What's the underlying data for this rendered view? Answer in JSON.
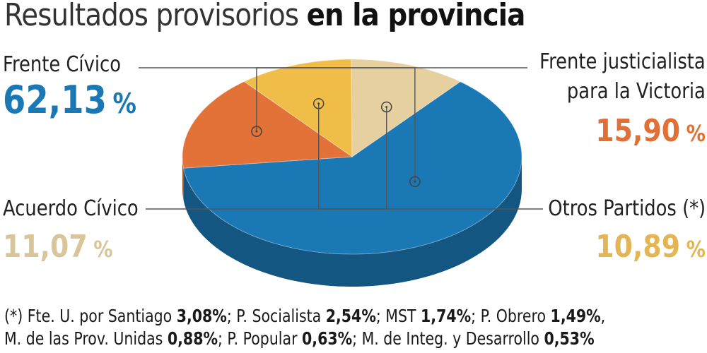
{
  "title": {
    "light": "Resultados provisorios",
    "bold": "en la provincia"
  },
  "chart_data": {
    "type": "pie",
    "title": "Resultados provisorios en la provincia",
    "slices": [
      {
        "name": "Frente Cívico",
        "value": 62.13,
        "label": "62,13",
        "color": "#1a78b4"
      },
      {
        "name": "Frente justicialista para la Victoria",
        "name_line1": "Frente justicialista",
        "name_line2": "para la Victoria",
        "value": 15.9,
        "label": "15,90",
        "color": "#e27238"
      },
      {
        "name": "Otros Partidos (*)",
        "value": 10.89,
        "label": "10,89",
        "color": "#f0be48"
      },
      {
        "name": "Acuerdo Cívico",
        "value": 11.07,
        "label": "11,07",
        "color": "#e6d0a0"
      }
    ],
    "unit": "%"
  },
  "footnote": {
    "line1": [
      {
        "t": "(*) Fte. U. por Santiago ",
        "b": false
      },
      {
        "t": "3,08%",
        "b": true
      },
      {
        "t": "; P. Socialista ",
        "b": false
      },
      {
        "t": "2,54%",
        "b": true
      },
      {
        "t": "; MST ",
        "b": false
      },
      {
        "t": "1,74%",
        "b": true
      },
      {
        "t": "; P. Obrero ",
        "b": false
      },
      {
        "t": "1,49%",
        "b": true
      },
      {
        "t": ",",
        "b": false
      }
    ],
    "line2": [
      {
        "t": "M. de las Prov. Unidas ",
        "b": false
      },
      {
        "t": "0,88%",
        "b": true
      },
      {
        "t": "; P. Popular ",
        "b": false
      },
      {
        "t": "0,63%",
        "b": true
      },
      {
        "t": "; M. de Integ. y Desarrollo ",
        "b": false
      },
      {
        "t": "0,53%",
        "b": true
      }
    ]
  }
}
